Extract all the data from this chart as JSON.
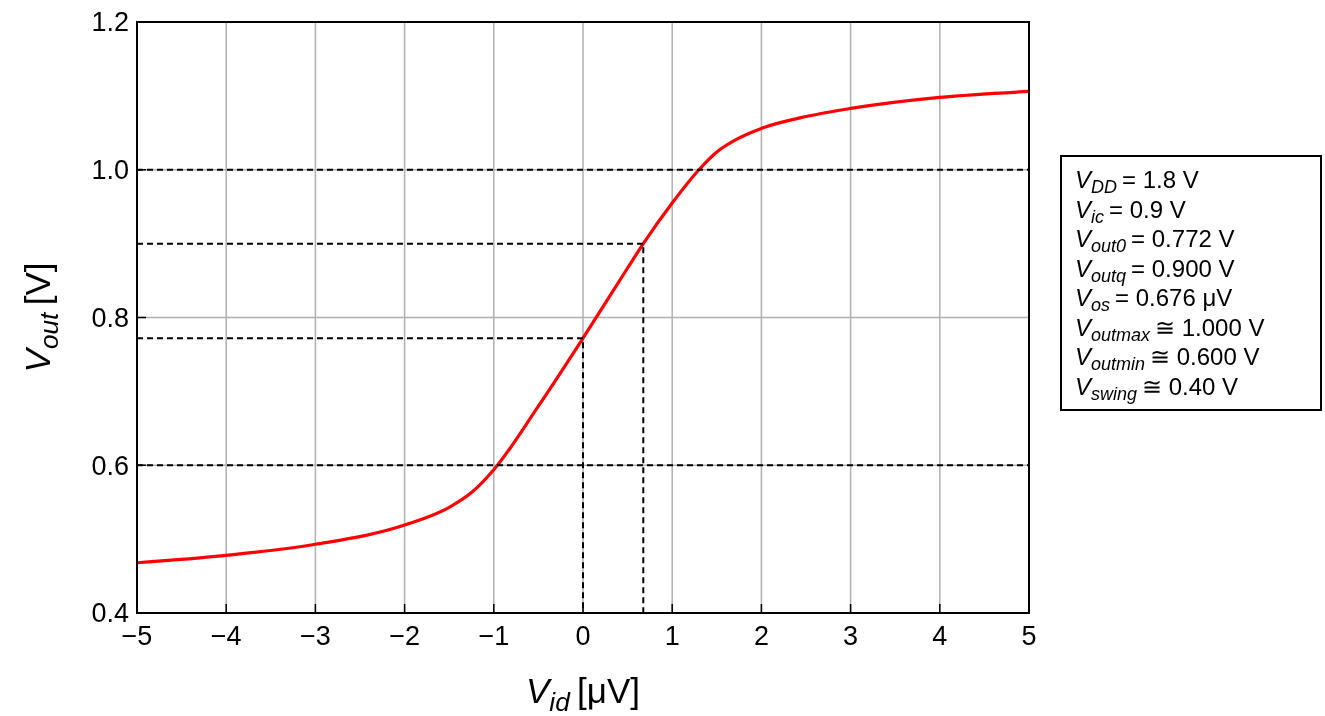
{
  "chart_data": {
    "type": "line",
    "xlabel": "V$_{id}$ [μV]",
    "ylabel": "V$_{out}$ [V]",
    "xlim": [
      -5,
      5
    ],
    "ylim": [
      0.4,
      1.2
    ],
    "xticks": [
      {
        "value": -5,
        "label": "−5"
      },
      {
        "value": -4,
        "label": "−4"
      },
      {
        "value": -3,
        "label": "−3"
      },
      {
        "value": -2,
        "label": "−2"
      },
      {
        "value": -1,
        "label": "−1"
      },
      0,
      1,
      2,
      3,
      4,
      5
    ],
    "yticks": [
      {
        "value": 0.4,
        "label": "0.4"
      },
      {
        "value": 0.6,
        "label": "0.6"
      },
      {
        "value": 0.8,
        "label": "0.8"
      },
      {
        "value": 1.0,
        "label": "1.0"
      },
      {
        "value": 1.2,
        "label": "1.2"
      }
    ],
    "grid": true,
    "series": [
      {
        "color": "#ff0000",
        "x": [
          -5,
          -4,
          -3,
          -2,
          -1.5,
          -1.25,
          -1,
          -0.5,
          0,
          0.5,
          0.676,
          1,
          1.3,
          1.5,
          1.75,
          2,
          2.5,
          3,
          4,
          5
        ],
        "values": [
          0.468,
          0.478,
          0.493,
          0.519,
          0.543,
          0.563,
          0.594,
          0.68,
          0.772,
          0.867,
          0.9,
          0.955,
          1.0,
          1.024,
          1.043,
          1.056,
          1.072,
          1.083,
          1.098,
          1.106
        ]
      },
      {
        "color": "#000000",
        "line_style": "dashed",
        "x": [
          -5,
          5
        ],
        "values": [
          1.0,
          1.0
        ]
      },
      {
        "color": "#000000",
        "line_style": "dashed",
        "x": [
          -5,
          5
        ],
        "values": [
          0.6,
          0.6
        ]
      },
      {
        "color": "#000000",
        "line_style": "dashed",
        "x": [
          -5,
          0,
          0
        ],
        "values": [
          0.772,
          0.772,
          0.4
        ]
      },
      {
        "color": "#000000",
        "line_style": "dashed",
        "x": [
          -5,
          0.676,
          0.676
        ],
        "values": [
          0.9,
          0.9,
          0.4
        ]
      }
    ],
    "annotations": [
      "V$_{DD}$ = 1.8 V",
      "V$_{ic}$ = 0.9 V",
      "V$_{out0}$ = 0.772 V",
      "V$_{outq}$ = 0.900 V",
      "V$_{os}$ = 0.676 μV",
      "V$_{outmax}$ ≅ 1.000 V",
      "V$_{outmin}$ ≅ 0.600 V",
      "V$_{swing}$ ≅ 0.40 V"
    ]
  }
}
